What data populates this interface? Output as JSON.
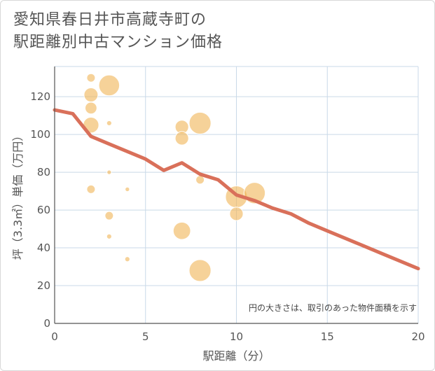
{
  "title": {
    "line1": "愛知県春日井市高蔵寺町の",
    "line2": "駅距離別中古マンション価格"
  },
  "chart_data": {
    "type": "scatter",
    "title": "愛知県春日井市高蔵寺町の駅距離別中古マンション価格",
    "xlabel": "駅距離（分）",
    "ylabel": "坪（3.3㎡）単価（万円）",
    "xlim": [
      0,
      20
    ],
    "ylim": [
      0,
      136
    ],
    "xticks": [
      0,
      5,
      10,
      15,
      20
    ],
    "yticks": [
      0,
      20,
      40,
      60,
      80,
      100,
      120
    ],
    "grid": true,
    "note": "円の大きさは、取引のあった物件面積を示す",
    "colors": {
      "bubble": "#f0b65a",
      "line": "#d9705a",
      "grid": "#c9d9e8"
    },
    "points": [
      {
        "x": 2,
        "y": 130,
        "size": 1.0
      },
      {
        "x": 2,
        "y": 121,
        "size": 2.0
      },
      {
        "x": 2,
        "y": 114,
        "size": 1.6
      },
      {
        "x": 2,
        "y": 105,
        "size": 2.3
      },
      {
        "x": 2,
        "y": 71,
        "size": 1.0
      },
      {
        "x": 3,
        "y": 126,
        "size": 3.2
      },
      {
        "x": 3,
        "y": 106,
        "size": 0.4
      },
      {
        "x": 3,
        "y": 80,
        "size": 0.3
      },
      {
        "x": 3,
        "y": 57,
        "size": 1.0
      },
      {
        "x": 3,
        "y": 46,
        "size": 0.4
      },
      {
        "x": 4,
        "y": 71,
        "size": 0.3
      },
      {
        "x": 4,
        "y": 34,
        "size": 0.4
      },
      {
        "x": 7,
        "y": 104,
        "size": 1.9
      },
      {
        "x": 7,
        "y": 98,
        "size": 1.9
      },
      {
        "x": 7,
        "y": 49,
        "size": 2.6
      },
      {
        "x": 8,
        "y": 106,
        "size": 3.4
      },
      {
        "x": 8,
        "y": 76,
        "size": 1.0
      },
      {
        "x": 8,
        "y": 28,
        "size": 3.4
      },
      {
        "x": 10,
        "y": 67,
        "size": 3.4
      },
      {
        "x": 10,
        "y": 58,
        "size": 1.9
      },
      {
        "x": 11,
        "y": 69,
        "size": 3.3
      }
    ],
    "series": [
      {
        "x": [
          0,
          1,
          2,
          3,
          4,
          5,
          6,
          7,
          8,
          9,
          10,
          11,
          12,
          13,
          14,
          15,
          16,
          17,
          18,
          19,
          20
        ],
        "values": [
          113,
          111,
          99,
          95,
          91,
          87,
          81,
          85,
          79,
          76,
          68,
          65,
          61,
          58,
          53,
          49,
          45,
          41,
          37,
          33,
          29
        ]
      }
    ]
  }
}
